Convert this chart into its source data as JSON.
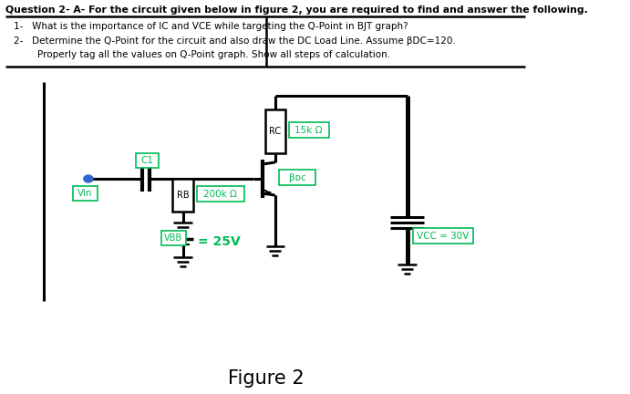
{
  "title_text": "Question 2- A- For the circuit given below in figure 2, you are required to find and answer the following.",
  "item1": "1-   What is the importance of IC and VCE while targeting the Q-Point in BJT graph?",
  "item2": "2-   Determine the Q-Point for the circuit and also draw the DC Load Line. Assume βDC=120.",
  "item3": "        Properly tag all the values on Q-Point graph. Show all steps of calculation.",
  "figure_label": "Figure 2",
  "bg_color": "#ffffff",
  "line_color": "#000000",
  "green_color": "#00bb55",
  "label_RC": "RC",
  "label_RC_val": "15k Ω",
  "label_C1": "C1",
  "label_Bac": "βᴅᴄ",
  "label_Vin": "Vin",
  "label_RB": "RB",
  "label_RB_val": "200k Ω",
  "label_VBB": "VBB",
  "label_VBB_val": "= 25V",
  "label_VCC": "VCC = 30V"
}
